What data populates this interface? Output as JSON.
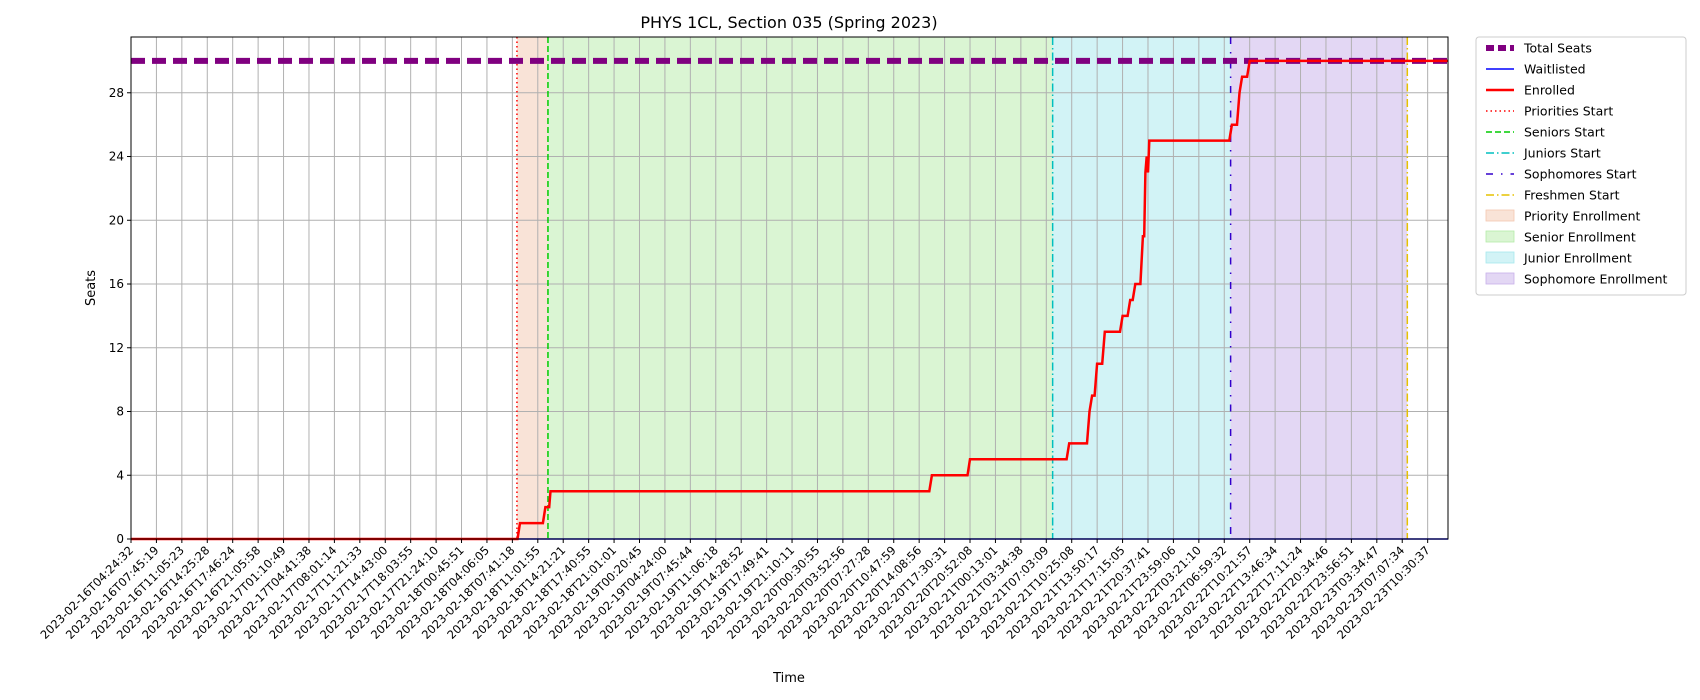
{
  "chart_data": {
    "type": "line",
    "title": "PHYS 1CL, Section 035 (Spring 2023)",
    "xlabel": "Time",
    "ylabel": "Seats",
    "ylim": [
      0,
      31.5
    ],
    "y_ticks": [
      0,
      4,
      8,
      12,
      16,
      20,
      24,
      28
    ],
    "grid": true,
    "legend_placement": "outside upper right",
    "x_tick_labels": [
      "2023-02-16T04:24:32",
      "2023-02-16T07:45:19",
      "2023-02-16T11:05:23",
      "2023-02-16T14:25:28",
      "2023-02-16T17:46:24",
      "2023-02-16T21:05:58",
      "2023-02-17T01:10:49",
      "2023-02-17T04:41:38",
      "2023-02-17T08:01:14",
      "2023-02-17T11:21:33",
      "2023-02-17T14:43:00",
      "2023-02-17T18:03:55",
      "2023-02-17T21:24:10",
      "2023-02-18T00:45:51",
      "2023-02-18T04:06:05",
      "2023-02-18T07:41:18",
      "2023-02-18T11:01:55",
      "2023-02-18T14:21:21",
      "2023-02-18T17:40:55",
      "2023-02-18T21:01:01",
      "2023-02-19T00:20:45",
      "2023-02-19T04:24:00",
      "2023-02-19T07:45:44",
      "2023-02-19T11:06:18",
      "2023-02-19T14:28:52",
      "2023-02-19T17:49:41",
      "2023-02-19T21:10:11",
      "2023-02-20T00:30:55",
      "2023-02-20T03:52:56",
      "2023-02-20T07:27:28",
      "2023-02-20T10:47:59",
      "2023-02-20T14:08:56",
      "2023-02-20T17:30:31",
      "2023-02-20T20:52:08",
      "2023-02-21T00:13:01",
      "2023-02-21T03:34:38",
      "2023-02-21T07:03:09",
      "2023-02-21T10:25:08",
      "2023-02-21T13:50:17",
      "2023-02-21T17:15:05",
      "2023-02-21T20:37:41",
      "2023-02-21T23:59:06",
      "2023-02-22T03:21:10",
      "2023-02-22T06:59:32",
      "2023-02-22T10:21:57",
      "2023-02-22T13:46:34",
      "2023-02-22T17:11:24",
      "2023-02-22T20:34:46",
      "2023-02-22T23:56:51",
      "2023-02-23T03:34:47",
      "2023-02-23T07:07:34",
      "2023-02-23T10:30:37"
    ],
    "x_index_range": [
      0,
      51.8
    ],
    "series": [
      {
        "name": "Total Seats",
        "color": "#800080",
        "style": "dashed-thick",
        "points": [
          [
            0,
            30
          ],
          [
            51.8,
            30
          ]
        ]
      },
      {
        "name": "Waitlisted",
        "color": "#0000ff",
        "style": "solid-thin",
        "points": [
          [
            0,
            0
          ],
          [
            51.8,
            0
          ]
        ]
      },
      {
        "name": "Enrolled",
        "color": "#ff0000",
        "style": "solid-thick",
        "points": [
          [
            0,
            0
          ],
          [
            15.2,
            0
          ],
          [
            15.3,
            1
          ],
          [
            16.2,
            1
          ],
          [
            16.3,
            2
          ],
          [
            16.45,
            2
          ],
          [
            16.5,
            3
          ],
          [
            31.4,
            3
          ],
          [
            31.5,
            4
          ],
          [
            32.9,
            4
          ],
          [
            33.0,
            5
          ],
          [
            36.8,
            5
          ],
          [
            36.9,
            6
          ],
          [
            37.6,
            6
          ],
          [
            37.7,
            8
          ],
          [
            37.8,
            9
          ],
          [
            37.9,
            9
          ],
          [
            38.0,
            11
          ],
          [
            38.2,
            11
          ],
          [
            38.3,
            13
          ],
          [
            38.9,
            13
          ],
          [
            39.0,
            14
          ],
          [
            39.2,
            14
          ],
          [
            39.3,
            15
          ],
          [
            39.4,
            15
          ],
          [
            39.5,
            16
          ],
          [
            39.7,
            16
          ],
          [
            39.8,
            19
          ],
          [
            39.85,
            19
          ],
          [
            39.9,
            23
          ],
          [
            39.95,
            24
          ],
          [
            40.0,
            23
          ],
          [
            40.05,
            25
          ],
          [
            43.2,
            25
          ],
          [
            43.3,
            26
          ],
          [
            43.5,
            26
          ],
          [
            43.6,
            28
          ],
          [
            43.7,
            29
          ],
          [
            43.9,
            29
          ],
          [
            44.0,
            30
          ],
          [
            51.8,
            30
          ]
        ]
      }
    ],
    "start_lines": [
      {
        "name": "Priorities Start",
        "x": 15.18,
        "color": "#ff0000",
        "style": "dotted"
      },
      {
        "name": "Seniors Start",
        "x": 16.4,
        "color": "#00cc00",
        "style": "dashed"
      },
      {
        "name": "Juniors Start",
        "x": 36.25,
        "color": "#00bfbf",
        "style": "dashdot"
      },
      {
        "name": "Sophomores Start",
        "x": 43.25,
        "color": "#3300cc",
        "style": "loosely-dashdot"
      },
      {
        "name": "Freshmen Start",
        "x": 50.2,
        "color": "#e6c200",
        "style": "dashdot"
      }
    ],
    "regions": [
      {
        "name": "Priority Enrollment",
        "from": 15.18,
        "to": 16.4,
        "color": "#f4c7b0"
      },
      {
        "name": "Senior Enrollment",
        "from": 16.4,
        "to": 36.25,
        "color": "#b5eba8"
      },
      {
        "name": "Junior Enrollment",
        "from": 36.25,
        "to": 43.25,
        "color": "#a6e8ee"
      },
      {
        "name": "Sophomore Enrollment",
        "from": 43.25,
        "to": 50.2,
        "color": "#c8b0ea"
      }
    ],
    "legend": [
      "Total Seats",
      "Waitlisted",
      "Enrolled",
      "Priorities Start",
      "Seniors Start",
      "Juniors Start",
      "Sophomores Start",
      "Freshmen Start",
      "Priority Enrollment",
      "Senior Enrollment",
      "Junior Enrollment",
      "Sophomore Enrollment"
    ]
  }
}
